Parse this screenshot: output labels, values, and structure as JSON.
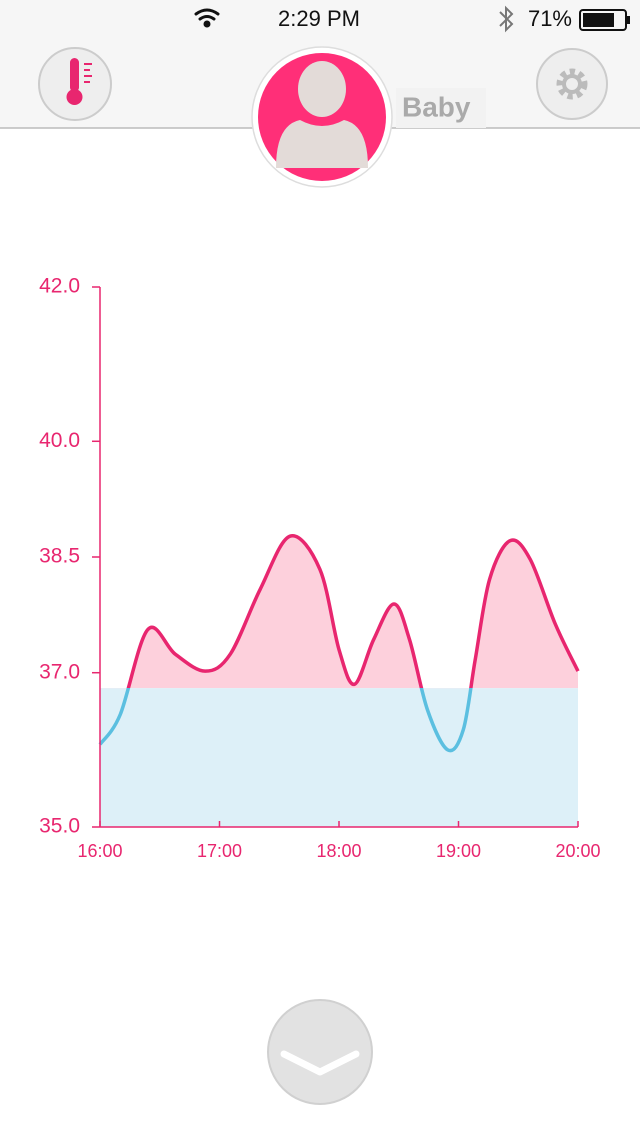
{
  "status": {
    "time": "2:29 PM",
    "battery": "71%"
  },
  "profile": {
    "name": "Baby"
  },
  "chart_data": {
    "type": "line",
    "x": [
      16.0,
      16.17,
      16.4,
      16.63,
      16.88,
      17.09,
      17.34,
      17.59,
      17.84,
      18.0,
      18.13,
      18.29,
      18.46,
      18.59,
      18.74,
      18.91,
      19.04,
      19.14,
      19.26,
      19.43,
      19.6,
      19.81,
      20.0
    ],
    "values": [
      36.07,
      36.46,
      37.56,
      37.24,
      37.02,
      37.24,
      38.08,
      38.77,
      38.34,
      37.3,
      36.85,
      37.43,
      37.89,
      37.43,
      36.52,
      36.0,
      36.26,
      37.17,
      38.21,
      38.71,
      38.47,
      37.63,
      37.02
    ],
    "threshold": 36.8,
    "color_above": "#e8266f",
    "color_below": "#5bbfe0",
    "fill_above": "#fdd0dc",
    "fill_below": "#ddf0f8",
    "axis_color": "#e8266f",
    "xlim": [
      16,
      20
    ],
    "xticks": [
      {
        "value": 16,
        "label": "16:00"
      },
      {
        "value": 17,
        "label": "17:00"
      },
      {
        "value": 18,
        "label": "18:00"
      },
      {
        "value": 19,
        "label": "19:00"
      },
      {
        "value": 20,
        "label": "20:00"
      }
    ],
    "ylim": [
      35,
      42
    ],
    "yticks": [
      {
        "value": 35,
        "label": "35.0"
      },
      {
        "value": 37,
        "label": "37.0"
      },
      38.5,
      {
        "value": 40,
        "label": "40.0"
      },
      {
        "value": 42,
        "label": "42.0"
      }
    ],
    "grid": false
  }
}
